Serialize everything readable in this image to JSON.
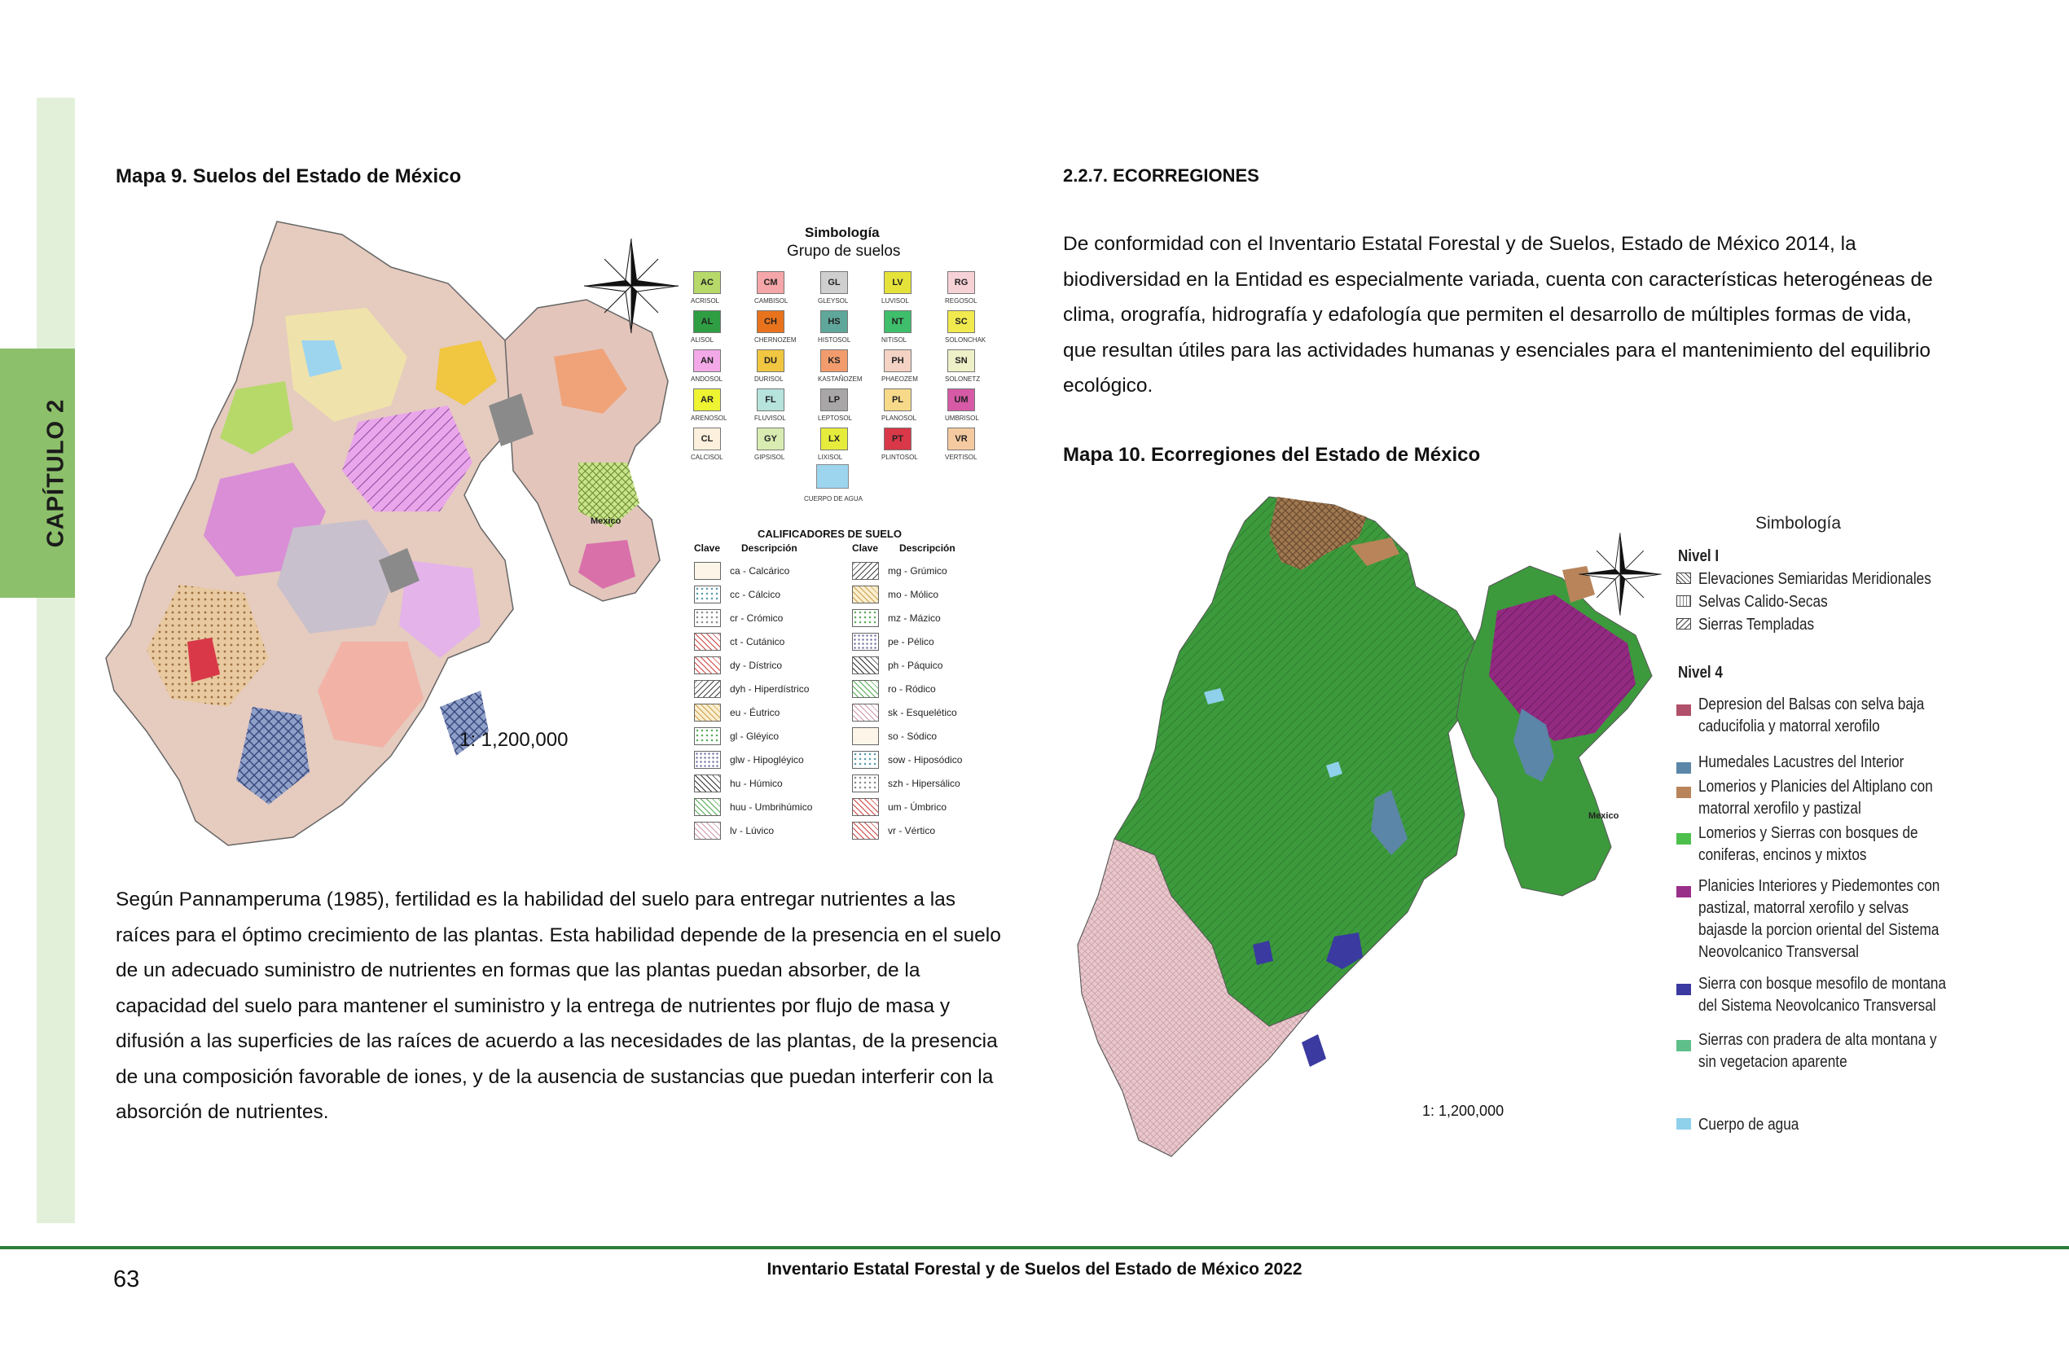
{
  "sidebar": {
    "chapter": "CAPÍTULO 2"
  },
  "left": {
    "map_heading": "Mapa 9. Suelos del Estado de México",
    "scale": "1: 1,200,000",
    "map_city_label": "Mexico",
    "legend": {
      "title": "Simbología",
      "subtitle": "Grupo de suelos",
      "soil_groups": [
        {
          "code": "AC",
          "name": "ACRISOL",
          "color": "#b7d96a"
        },
        {
          "code": "CM",
          "name": "CAMBISOL",
          "color": "#f4a6a8"
        },
        {
          "code": "GL",
          "name": "GLEYSOL",
          "color": "#cfcfcf"
        },
        {
          "code": "LV",
          "name": "LUVISOL",
          "color": "#e5e33a"
        },
        {
          "code": "RG",
          "name": "REGOSOL",
          "color": "#f6d2d6"
        },
        {
          "code": "AL",
          "name": "ALISOL",
          "color": "#2f9e43"
        },
        {
          "code": "CH",
          "name": "CHERNOZEM",
          "color": "#e9731c"
        },
        {
          "code": "HS",
          "name": "HISTOSOL",
          "color": "#5fa79a"
        },
        {
          "code": "NT",
          "name": "NITISOL",
          "color": "#3fbf6b"
        },
        {
          "code": "SC",
          "name": "SOLONCHAK",
          "color": "#f1ea4e"
        },
        {
          "code": "AN",
          "name": "ANDOSOL",
          "color": "#f3a9e8"
        },
        {
          "code": "DU",
          "name": "DURISOL",
          "color": "#f1c640"
        },
        {
          "code": "KS",
          "name": "KASTAÑOZEM",
          "color": "#f29c6d"
        },
        {
          "code": "PH",
          "name": "PHAEOZEM",
          "color": "#f4d3c4"
        },
        {
          "code": "SN",
          "name": "SOLONETZ",
          "color": "#eef0c8"
        },
        {
          "code": "AR",
          "name": "ARENOSOL",
          "color": "#eef332"
        },
        {
          "code": "FL",
          "name": "FLUVISOL",
          "color": "#b6e3dc"
        },
        {
          "code": "LP",
          "name": "LEPTOSOL",
          "color": "#a9a6a8"
        },
        {
          "code": "PL",
          "name": "PLANOSOL",
          "color": "#f7d98a"
        },
        {
          "code": "UM",
          "name": "UMBRISOL",
          "color": "#d65aa6"
        },
        {
          "code": "CL",
          "name": "CALCISOL",
          "color": "#fdf0dc"
        },
        {
          "code": "GY",
          "name": "GIPSISOL",
          "color": "#d8ecb2"
        },
        {
          "code": "LX",
          "name": "LIXISOL",
          "color": "#e6ec3c"
        },
        {
          "code": "PT",
          "name": "PLINTOSOL",
          "color": "#d83848"
        },
        {
          "code": "VR",
          "name": "VERTISOL",
          "color": "#f6caa0"
        }
      ],
      "water_label": "CUERPO DE AGUA",
      "qualifiers_title": "CALIFICADORES DE SUELO",
      "qualifiers_head": {
        "key": "Clave",
        "desc": "Descripción"
      },
      "qualifiers_left": [
        "ca - Calcárico",
        "cc - Cálcico",
        "cr - Crómico",
        "ct - Cutánico",
        "dy - Dístrico",
        "dyh - Hiperdístrico",
        "eu - Éutrico",
        "gl - Gléyico",
        "glw - Hipogléyico",
        "hu - Húmico",
        "huu - Umbrihúmico",
        "lv - Lúvico"
      ],
      "qualifiers_right": [
        "mg - Grúmico",
        "mo - Mólico",
        "mz - Mázico",
        "pe - Pélico",
        "ph - Páquico",
        "ro - Ródico",
        "sk - Esquelético",
        "so - Sódico",
        "sow - Hiposódico",
        "szh - Hipersálico",
        "um - Úmbrico",
        "vr - Vértico"
      ]
    },
    "paragraph": [
      "Según Pannamperuma (1985), fertilidad es la habilidad del suelo para entregar nutrientes a las",
      "raíces para el óptimo crecimiento de las plantas. Esta habilidad depende de la presencia en el suelo",
      "de un adecuado suministro de nutrientes en formas que las plantas puedan absorber, de la",
      "capacidad del suelo para mantener el suministro y la entrega de nutrientes por flujo de masa y",
      "difusión a las superficies de las raíces de acuerdo a las necesidades de las plantas, de la presencia",
      "de una composición favorable de iones, y de la ausencia de sustancias que puedan interferir con la",
      "absorción de nutrientes."
    ]
  },
  "right": {
    "section_heading": "2.2.7. ECORREGIONES",
    "paragraph": [
      "De conformidad con el Inventario Estatal Forestal y de Suelos, Estado de México 2014, la",
      "biodiversidad en la Entidad es especialmente variada, cuenta con características heterogéneas de",
      "clima, orografía, hidrografía y edafología que permiten el desarrollo de múltiples formas de vida,",
      "que resultan útiles para las actividades humanas y esenciales para el mantenimiento del equilibrio",
      "ecológico."
    ],
    "map_heading": "Mapa 10. Ecorregiones del Estado de México",
    "scale": "1: 1,200,000",
    "map_city_label": "Mexico",
    "legend": {
      "title": "Simbología",
      "level1": "Nivel I",
      "level1_items": [
        "Elevaciones Semiaridas Meridionales",
        "Selvas Calido-Secas",
        "Sierras Templadas"
      ],
      "level4": "Nivel 4",
      "level4_items": [
        {
          "lines": [
            "Depresion del Balsas con selva baja",
            "caducifolia y matorral xerofilo"
          ],
          "color": "#b0506a"
        },
        {
          "lines": [
            "Humedales Lacustres del Interior"
          ],
          "color": "#5b86a8"
        },
        {
          "lines": [
            "Lomerios y Planicies del Altiplano con",
            "matorral xerofilo y pastizal"
          ],
          "color": "#b9845a"
        },
        {
          "lines": [
            "Lomerios y Sierras con bosques de",
            "coniferas, encinos y mixtos"
          ],
          "color": "#4cbf4c"
        },
        {
          "lines": [
            "Planicies Interiores y Piedemontes con",
            "pastizal, matorral xerofilo y selvas",
            "bajasde la porcion oriental del Sistema",
            "Neovolcanico Transversal"
          ],
          "color": "#9a2f8a"
        },
        {
          "lines": [
            "Sierra con bosque mesofilo de montana",
            "del Sistema Neovolcanico Transversal"
          ],
          "color": "#3a3aa0"
        },
        {
          "lines": [
            "Sierras con pradera de alta montana y",
            "sin vegetacion aparente"
          ],
          "color": "#5fbf8a"
        }
      ],
      "water": {
        "label": "Cuerpo de agua",
        "color": "#8fd0ea"
      }
    }
  },
  "footer": {
    "page_number": "63",
    "title": "Inventario Estatal Forestal y de Suelos del Estado de México 2022"
  }
}
